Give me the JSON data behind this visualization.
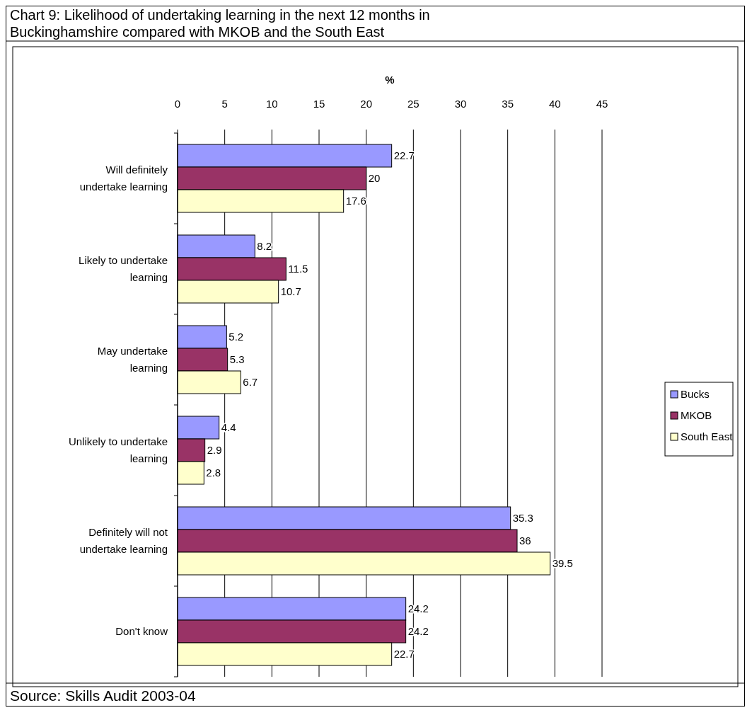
{
  "chart_data": {
    "type": "bar",
    "orientation": "horizontal",
    "title": "Chart 9: Likelihood of undertaking learning in the next 12 months in Buckinghamshire compared with MKOB and the South East",
    "xlabel": "%",
    "categories": [
      "Will definitely undertake learning",
      "Likely to undertake learning",
      "May undertake learning",
      "Unlikely to undertake learning",
      "Definitely will not undertake learning",
      "Don't know"
    ],
    "series": [
      {
        "name": "Bucks",
        "color": "#9999ff",
        "values": [
          22.7,
          8.2,
          5.2,
          4.4,
          35.3,
          24.2
        ]
      },
      {
        "name": "MKOB",
        "color": "#993366",
        "values": [
          20,
          11.5,
          5.3,
          2.9,
          36,
          24.2
        ]
      },
      {
        "name": "South East",
        "color": "#ffffcc",
        "values": [
          17.6,
          10.7,
          6.7,
          2.8,
          39.5,
          22.7
        ]
      }
    ],
    "xlim": [
      0,
      45
    ],
    "xticks": [
      0,
      5,
      10,
      15,
      20,
      25,
      30,
      35,
      40,
      45
    ],
    "grid": "x",
    "data_labels": true,
    "legend": "right",
    "annotations": [
      "Source: Skills Audit 2003-04"
    ]
  }
}
